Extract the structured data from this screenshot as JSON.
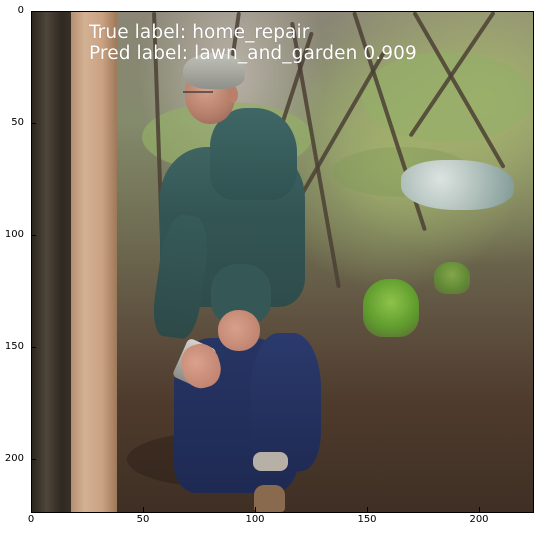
{
  "annotation": {
    "true_label": "True label: home_repair",
    "pred_label": "Pred label: lawn_and_garden 0.909"
  },
  "axes": {
    "y_ticks": [
      "0",
      "50",
      "100",
      "150",
      "200"
    ],
    "x_ticks": [
      "0",
      "50",
      "100",
      "150",
      "200"
    ],
    "x_range": [
      0,
      224
    ],
    "y_range": [
      0,
      224
    ],
    "frame_color": "#000000"
  },
  "scene": {
    "subjects": [
      "man-crouching",
      "wooden-post",
      "tree-trunk",
      "garden-plants",
      "white-tarp"
    ],
    "colors": {
      "hoodie": "#355755",
      "jeans": "#273564",
      "post": "#cfa989",
      "ground": "#4e3b2d",
      "greenery": "#93ad65"
    }
  }
}
